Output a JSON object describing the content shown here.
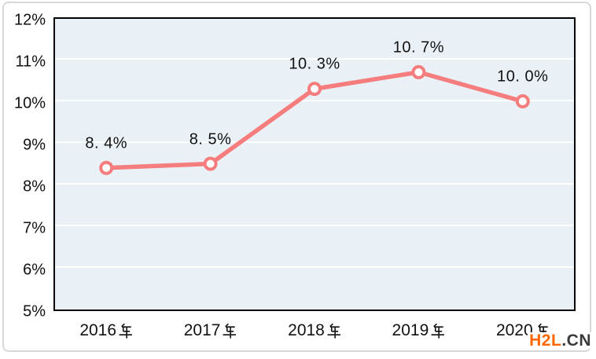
{
  "chart_data": {
    "type": "line",
    "title": "",
    "xlabel": "",
    "ylabel": "",
    "categories": [
      "2016年",
      "2017年",
      "2018年",
      "2019年",
      "2020年"
    ],
    "series": [
      {
        "name": "",
        "values": [
          8.4,
          8.5,
          10.3,
          10.7,
          10.0
        ],
        "point_labels": [
          "8.4%",
          "8.5%",
          "10.3%",
          "10.7%",
          "10.0%"
        ]
      }
    ],
    "y_ticks": [
      "12%",
      "11%",
      "10%",
      "9%",
      "8%",
      "7%",
      "6%",
      "5%"
    ],
    "ylim": [
      5,
      12
    ],
    "grid": "horizontal",
    "legend": "none",
    "marker": "open-circle"
  },
  "colors": {
    "line": "#f57d7d",
    "marker_fill": "#ffffff",
    "plot_background": "#eaf1f6",
    "gridline": "#ffffff",
    "plot_border": "#000000",
    "text": "#111111",
    "frame_border": "#d8d8d8",
    "watermark_brand": "#ff6600",
    "watermark_suffix": "#3a3a3a"
  },
  "watermark": {
    "brand": "H2L",
    "suffix": ".CN"
  }
}
